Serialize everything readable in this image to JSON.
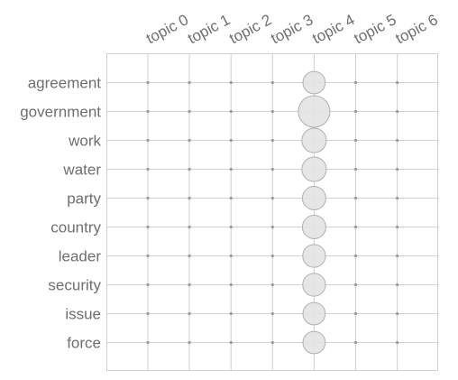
{
  "chart_data": {
    "type": "scatter",
    "title": "",
    "xlabel": "",
    "ylabel": "",
    "grid": true,
    "legend": "none",
    "x_categories": [
      "topic 0",
      "topic 1",
      "topic 2",
      "topic 3",
      "topic 4",
      "topic 5",
      "topic 6"
    ],
    "y_categories": [
      "agreement",
      "government",
      "work",
      "water",
      "party",
      "country",
      "leader",
      "security",
      "issue",
      "force"
    ],
    "marker_color": "#e3e3e3",
    "marker_edge_color": "#b0b0b0",
    "tiny_marker_color": "#9a9a9a",
    "grid_color": "#cfcfcf",
    "text_color": "#6e6e6e",
    "values": [
      [
        0,
        0,
        0,
        0,
        0.5,
        0,
        0
      ],
      [
        0,
        0,
        0,
        0,
        1.0,
        0,
        0
      ],
      [
        0,
        0,
        0,
        0,
        0.6,
        0,
        0
      ],
      [
        0,
        0,
        0,
        0,
        0.6,
        0,
        0
      ],
      [
        0,
        0,
        0,
        0,
        0.55,
        0,
        0
      ],
      [
        0,
        0,
        0,
        0,
        0.55,
        0,
        0
      ],
      [
        0,
        0,
        0,
        0,
        0.52,
        0,
        0
      ],
      [
        0,
        0,
        0,
        0,
        0.52,
        0,
        0
      ],
      [
        0,
        0,
        0,
        0,
        0.5,
        0,
        0
      ],
      [
        0,
        0,
        0,
        0,
        0.5,
        0,
        0
      ]
    ]
  }
}
